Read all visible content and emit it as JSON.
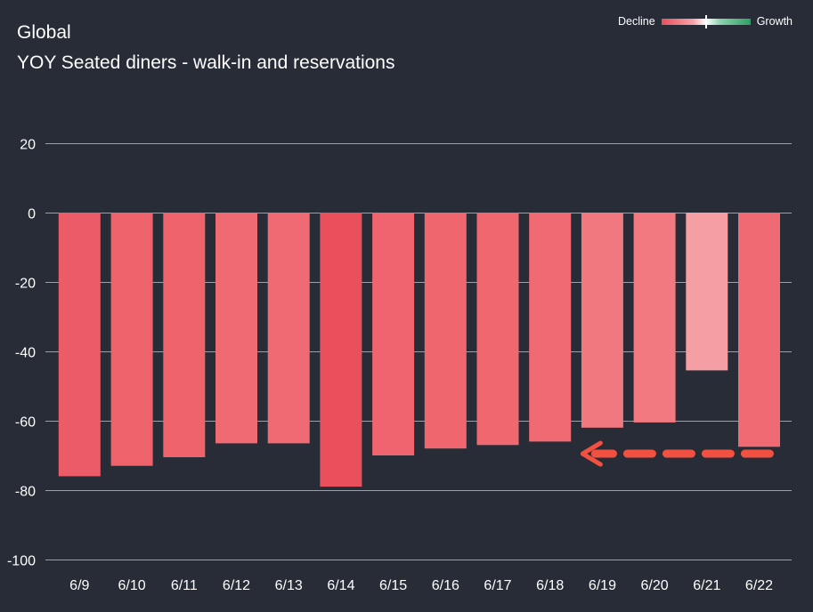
{
  "header": {
    "title": "Global",
    "subtitle": "YOY Seated diners - walk-in and reservations"
  },
  "legend": {
    "left_label": "Decline",
    "right_label": "Growth"
  },
  "colors": {
    "background": "#272c36",
    "gridline": "#9aa0aa",
    "bar_base": "#f06a73",
    "arrow": "#f25142"
  },
  "chart_data": {
    "type": "bar",
    "title": "YOY Seated diners - walk-in and reservations",
    "xlabel": "",
    "ylabel": "",
    "ylim": [
      -100,
      20
    ],
    "yticks": [
      20,
      0,
      -20,
      -40,
      -60,
      -80,
      -100
    ],
    "categories": [
      "6/9",
      "6/10",
      "6/11",
      "6/12",
      "6/13",
      "6/14",
      "6/15",
      "6/16",
      "6/17",
      "6/18",
      "6/19",
      "6/20",
      "6/21",
      "6/22"
    ],
    "values": [
      -76,
      -73,
      -70.5,
      -66.5,
      -66.5,
      -79,
      -70,
      -68,
      -67,
      -66,
      -62,
      -60.5,
      -45.5,
      -67.5
    ],
    "bar_colors": [
      "#ec5c68",
      "#ee626c",
      "#ee626c",
      "#f06a73",
      "#f06a73",
      "#e9505c",
      "#ef646e",
      "#f0666f",
      "#f0686f",
      "#f06a73",
      "#f27880",
      "#f27980",
      "#f59ea3",
      "#f06a73"
    ],
    "legend": {
      "position": "top-right",
      "entries": [
        "Decline",
        "Growth"
      ]
    },
    "annotations": [
      {
        "type": "dashed-arrow",
        "direction": "left",
        "from_category": "6/22",
        "to_category": "6/19",
        "y": -69.5
      }
    ]
  }
}
